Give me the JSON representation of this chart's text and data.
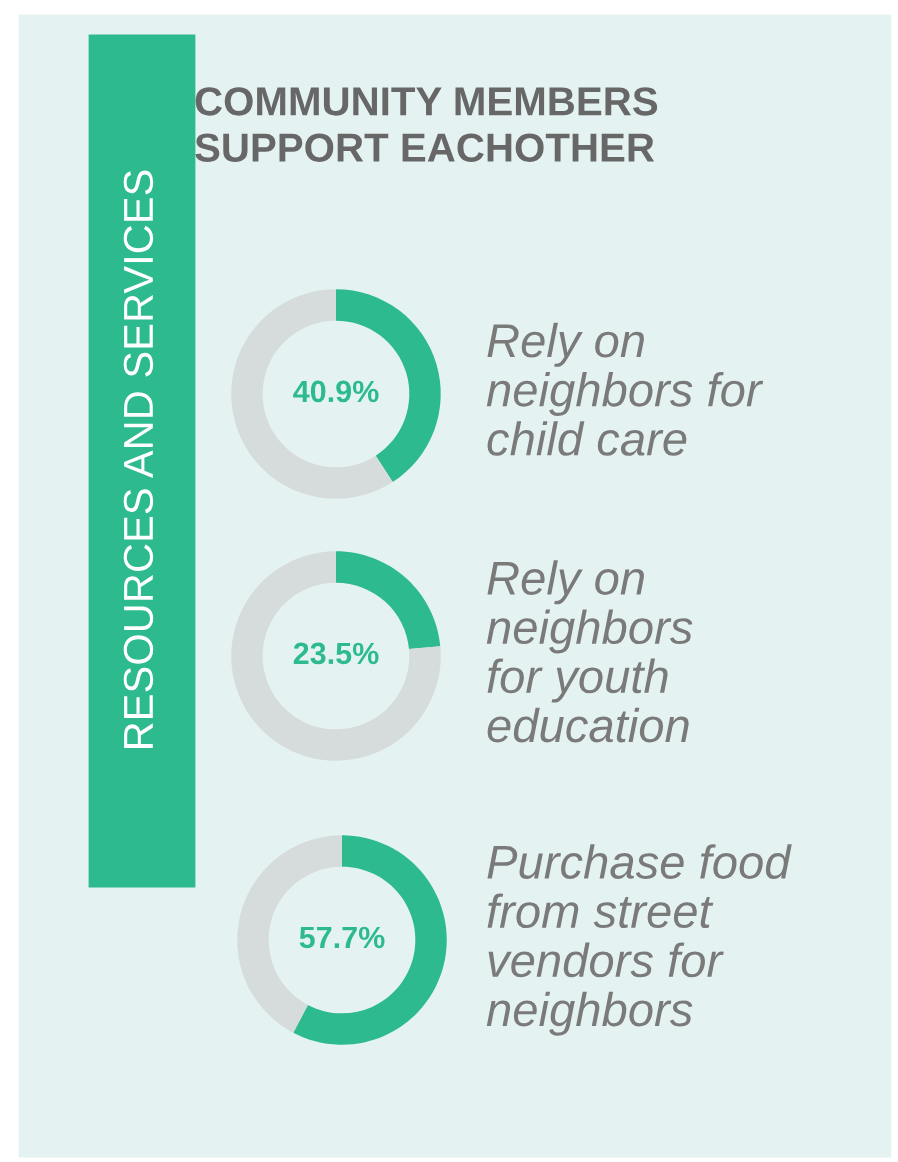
{
  "chart_data": [
    {
      "type": "donut",
      "title": "COMMUNITY MEMBERS\nSUPPORT EACHOTHER",
      "annotations": [
        "RESOURCES AND SERVICES"
      ],
      "categories": [
        "Rely on\nneighbors for\nchild care",
        null
      ],
      "values": [
        40.9,
        59.1
      ],
      "colors": [
        "#2dba8e",
        "#d5dcdb"
      ],
      "value_labels": [
        "40.9%",
        null
      ]
    },
    {
      "type": "donut",
      "categories": [
        "Rely on\nneighbors\nfor youth\neducation",
        null
      ],
      "values": [
        23.5,
        76.5
      ],
      "colors": [
        "#2dba8e",
        "#d5dcdb"
      ],
      "value_labels": [
        "23.5%",
        null
      ]
    },
    {
      "type": "donut",
      "categories": [
        "Purchase food\nfrom street\nvendors for\nneighbors",
        null
      ],
      "values": [
        57.7,
        42.3
      ],
      "colors": [
        "#2dba8e",
        "#d5dcdb"
      ],
      "value_labels": [
        "57.7%",
        null
      ]
    }
  ]
}
